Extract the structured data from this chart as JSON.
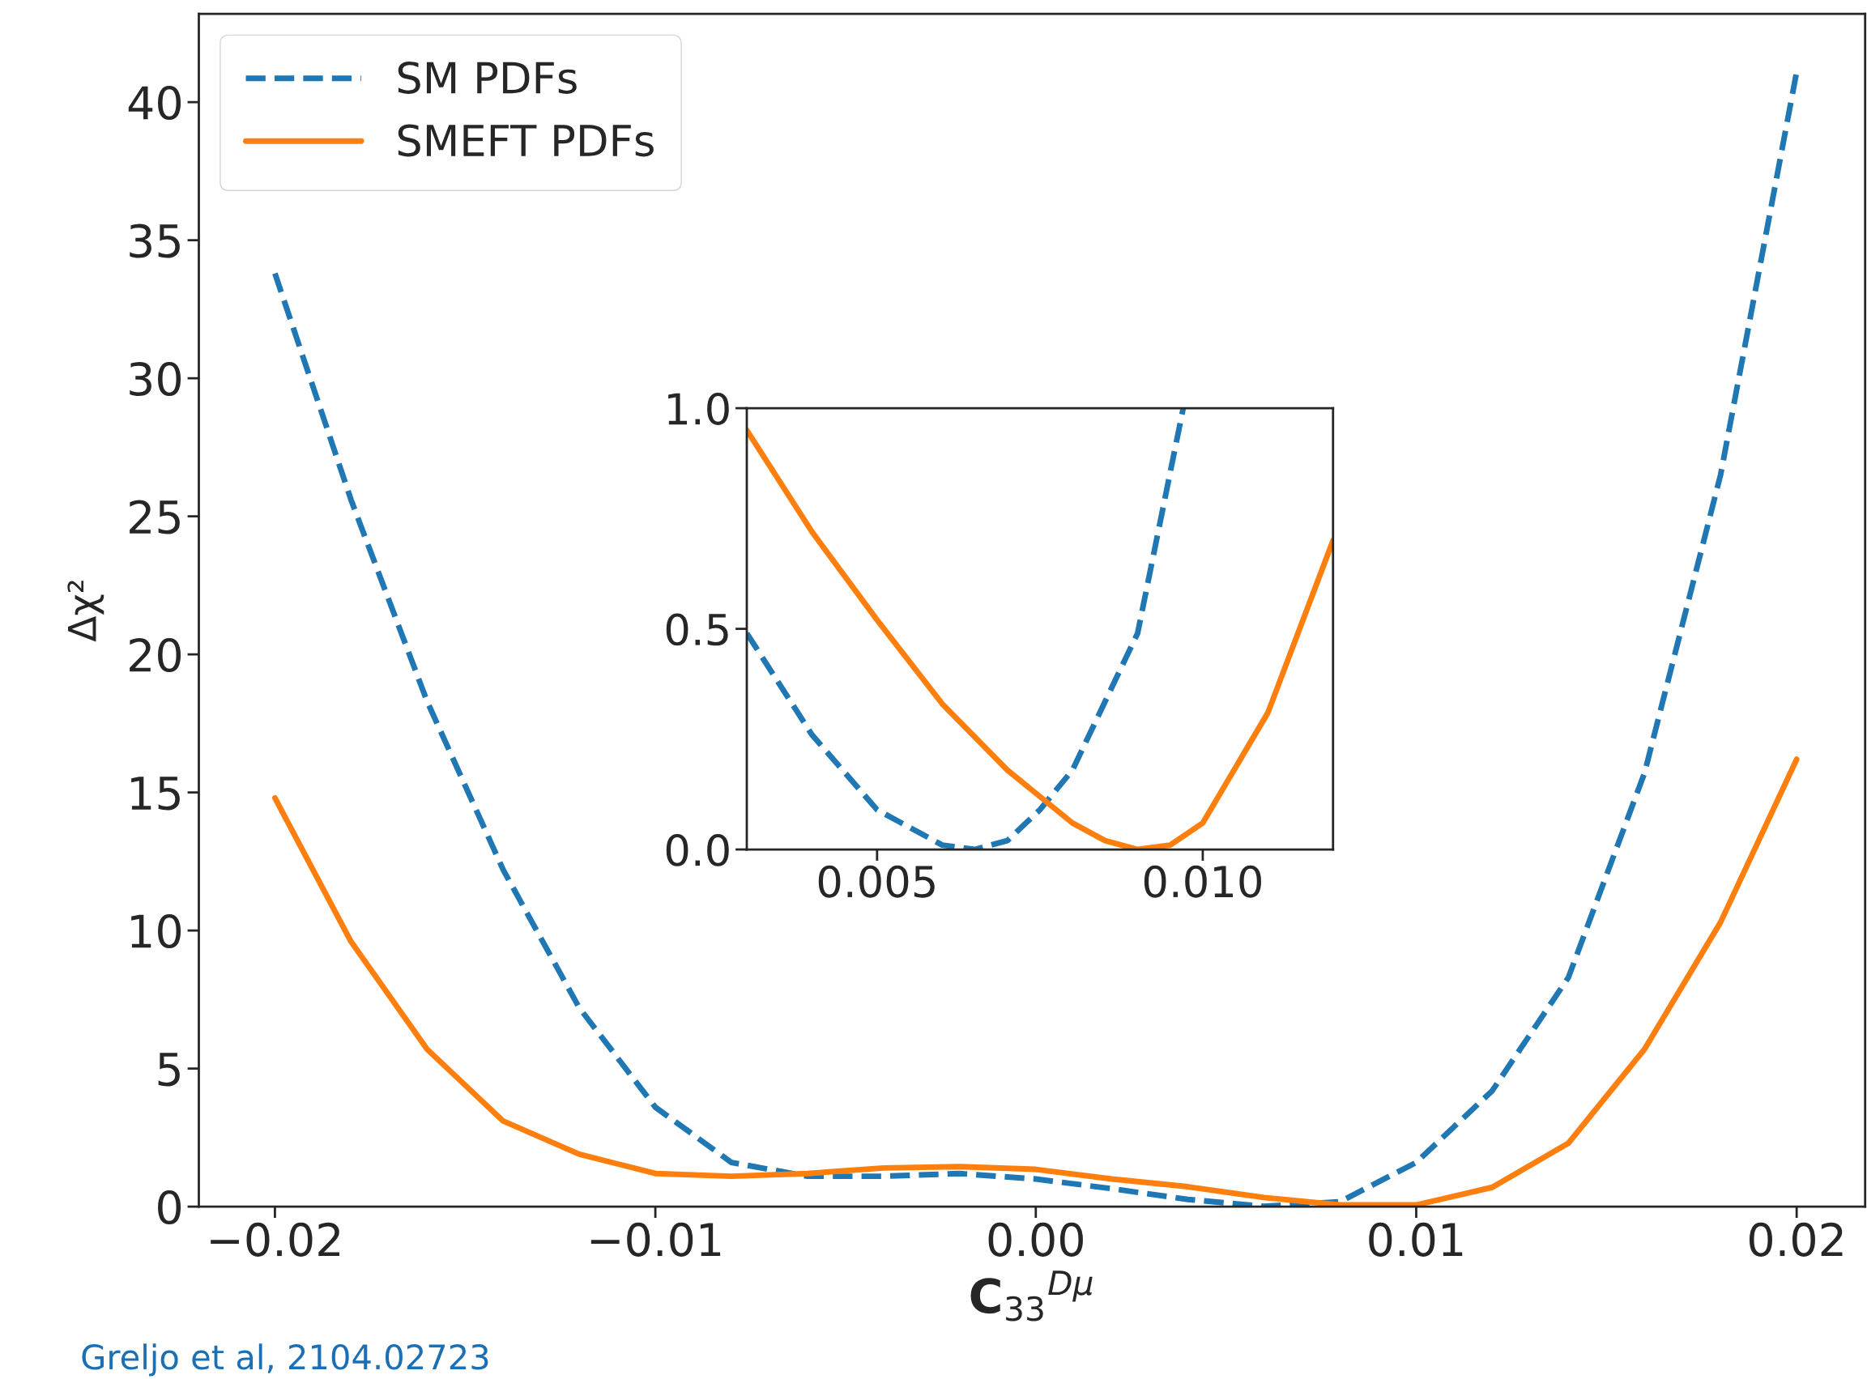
{
  "chart_data": [
    {
      "type": "line",
      "xlabel": "C$_{33}$$^{Dμ}$",
      "ylabel": "Δχ²",
      "legend": "top left",
      "grid": false,
      "x": [
        -0.02,
        -0.018,
        -0.016,
        -0.014,
        -0.012,
        -0.01,
        -0.008,
        -0.006,
        -0.004,
        -0.002,
        0,
        0.002,
        0.004,
        0.006,
        0.008,
        0.01,
        0.012,
        0.014,
        0.016,
        0.018,
        0.02
      ],
      "series": [
        {
          "name": "SM PDFs",
          "color": "#1f77b4",
          "line_style": "dashed",
          "values": [
            33.8,
            25.6,
            18.3,
            12.2,
            7.2,
            3.6,
            1.6,
            1.1,
            1.1,
            1.2,
            1.0,
            0.65,
            0.26,
            0.01,
            0.18,
            1.6,
            4.2,
            8.3,
            15.7,
            26.5,
            41.1
          ]
        },
        {
          "name": "SMEFT PDFs",
          "color": "#ff7f0e",
          "line_style": "solid",
          "values": [
            14.8,
            9.6,
            5.7,
            3.1,
            1.9,
            1.2,
            1.1,
            1.2,
            1.4,
            1.45,
            1.35,
            1.0,
            0.72,
            0.33,
            0.06,
            0.06,
            0.7,
            2.3,
            5.7,
            10.3,
            16.2
          ]
        }
      ],
      "xlim": [
        -0.022,
        0.0218
      ],
      "ylim": [
        0,
        43.2
      ],
      "xticks": [
        {
          "value": -0.02,
          "label": "−0.02"
        },
        {
          "value": -0.01,
          "label": "−0.01"
        },
        {
          "value": 0,
          "label": "0.00"
        },
        {
          "value": 0.01,
          "label": "0.01"
        },
        {
          "value": 0.02,
          "label": "0.02"
        }
      ],
      "yticks": [
        0,
        5,
        10,
        15,
        20,
        25,
        30,
        35,
        40
      ],
      "annotations": [
        "Greljo et al, 2104.02723"
      ]
    },
    {
      "type": "line",
      "grid": false,
      "legend": false,
      "series": [
        {
          "color": "#1f77b4",
          "line_style": "dashed",
          "x": [
            0.003,
            0.004,
            0.005,
            0.006,
            0.0065,
            0.007,
            0.0075,
            0.008,
            0.009,
            0.0097
          ],
          "values": [
            0.49,
            0.26,
            0.09,
            0.01,
            0.0,
            0.02,
            0.09,
            0.18,
            0.49,
            1.0
          ]
        },
        {
          "color": "#ff7f0e",
          "line_style": "solid",
          "x": [
            0.003,
            0.004,
            0.005,
            0.006,
            0.007,
            0.008,
            0.0085,
            0.009,
            0.0095,
            0.01,
            0.011,
            0.012
          ],
          "values": [
            0.95,
            0.72,
            0.52,
            0.33,
            0.18,
            0.06,
            0.02,
            0.0,
            0.01,
            0.06,
            0.31,
            0.7
          ]
        }
      ],
      "xlim": [
        0.003,
        0.012
      ],
      "ylim": [
        0,
        1.0
      ],
      "xticks": [
        {
          "value": 0.005,
          "label": "0.005"
        },
        {
          "value": 0.01,
          "label": "0.010"
        }
      ],
      "yticks": [
        {
          "value": 0,
          "label": "0.0"
        },
        {
          "value": 0.5,
          "label": "0.5"
        },
        {
          "value": 1.0,
          "label": "1.0"
        }
      ]
    }
  ]
}
